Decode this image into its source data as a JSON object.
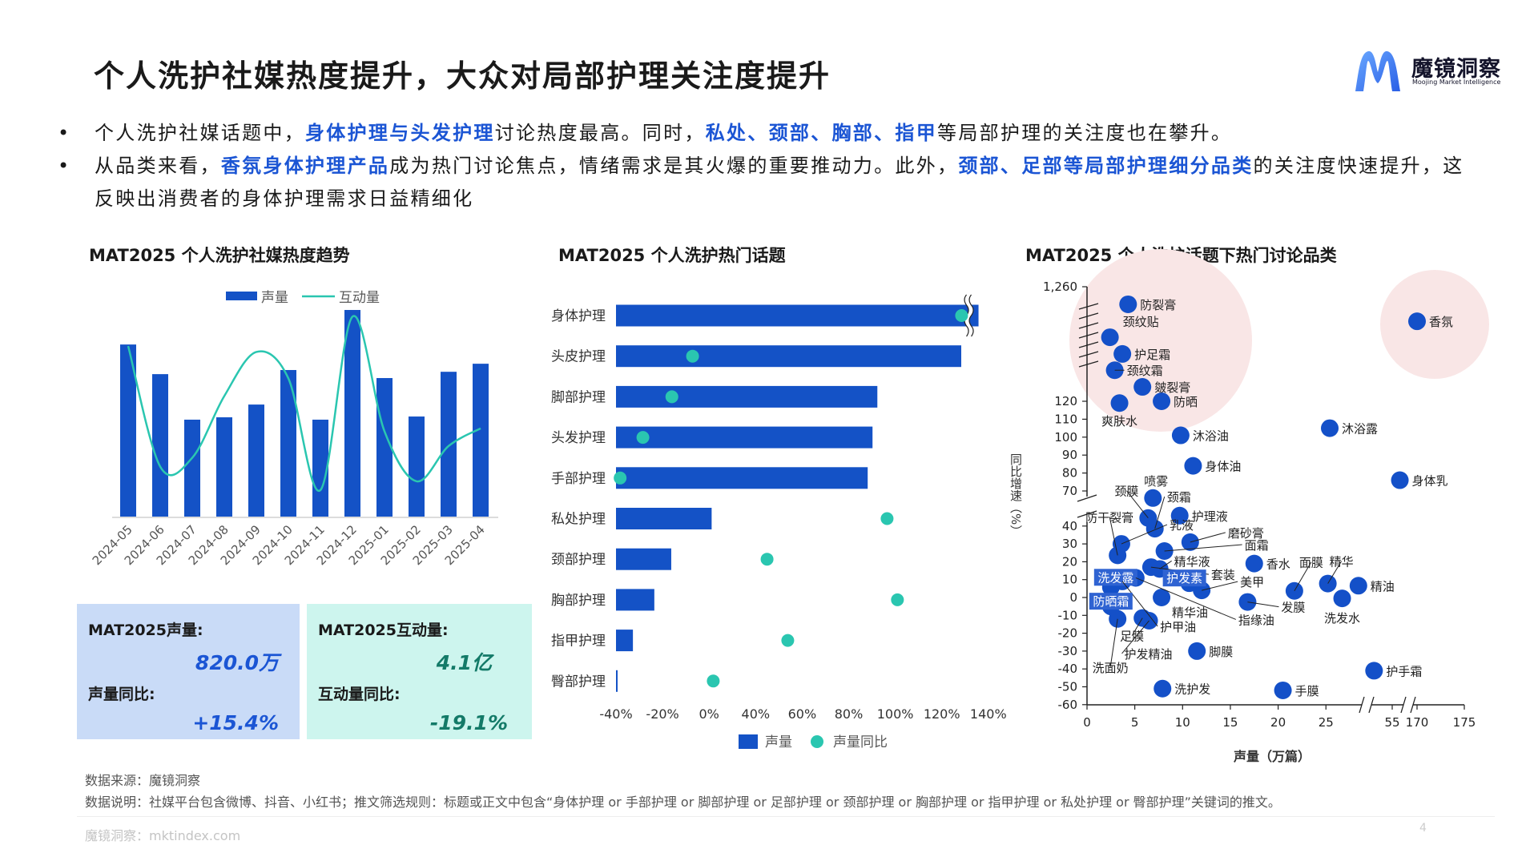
{
  "header": {
    "title": "个人洗护社媒热度提升，大众对局部护理关注度提升",
    "logo": {
      "name_cn": "魔镜洞察",
      "name_en": "Moojing Market Intelligence",
      "icon": "moojing-m-logo"
    }
  },
  "bullets": [
    {
      "segments": [
        {
          "text": "个人洗护社媒话题中，",
          "bold": false
        },
        {
          "text": "身体护理与头发护理",
          "bold": true
        },
        {
          "text": "讨论热度最高。同时，",
          "bold": false
        },
        {
          "text": "私处、颈部、胸部、指甲",
          "bold": true
        },
        {
          "text": "等局部护理的关注度也在攀升。",
          "bold": false
        }
      ]
    },
    {
      "segments": [
        {
          "text": "从品类来看，",
          "bold": false
        },
        {
          "text": "香氛身体护理产品",
          "bold": true
        },
        {
          "text": "成为热门讨论焦点，情绪需求是其火爆的重要推动力。此外，",
          "bold": false
        },
        {
          "text": "颈部、足部等局部护理细分品类",
          "bold": true
        },
        {
          "text": "的关注度快速提升，这反映出消费者的身体护理需求日益精细化",
          "bold": false
        }
      ]
    }
  ],
  "colors": {
    "accent": "#1b55d4",
    "bar": "#1452c6",
    "teal": "#2ac6b0",
    "kpi_blue_bg": "#c9dbf7",
    "kpi_teal_bg": "#cdf5ee",
    "kpi_teal_text": "#137a68",
    "highlight_zone": "#f9e6e6"
  },
  "chart_data": [
    {
      "type": "bar+line",
      "title": "MAT2025 个人洗护社媒热度趋势",
      "categories": [
        "2024-05",
        "2024-06",
        "2024-07",
        "2024-08",
        "2024-09",
        "2024-10",
        "2024-11",
        "2024-12",
        "2025-01",
        "2025-02",
        "2025-03",
        "2025-04"
      ],
      "series": [
        {
          "name": "声量",
          "type": "bar",
          "values": [
            87.7,
            72.6,
            49.4,
            50.6,
            57.1,
            74.7,
            49.4,
            105.3,
            70.6,
            51.0,
            73.8,
            77.9
          ]
        },
        {
          "name": "互动量",
          "type": "line",
          "smooth": true,
          "values": [
            0.58,
            0.17,
            0.2,
            0.41,
            0.56,
            0.47,
            0.09,
            0.68,
            0.29,
            0.12,
            0.24,
            0.3
          ]
        }
      ],
      "legend": "top",
      "grid": false
    },
    {
      "type": "bar+scatter",
      "title": "MAT2025 个人洗护热门话题",
      "categories": [
        "身体护理",
        "头皮护理",
        "脚部护理",
        "头发护理",
        "手部护理",
        "私处护理",
        "颈部护理",
        "胸部护理",
        "指甲护理",
        "臀部护理"
      ],
      "series": [
        {
          "name": "声量",
          "type": "bar",
          "values": [
            105,
            100,
            75.7,
            74.3,
            72.9,
            27.7,
            16,
            11.1,
            4.9,
            0.3
          ],
          "axis_break_on": "身体护理"
        },
        {
          "name": "声量同比",
          "type": "scatter",
          "values": [
            127,
            -3,
            -13,
            -27,
            -38,
            91,
            33,
            96,
            43,
            7
          ]
        }
      ],
      "x_tick_labels": [
        "-40%",
        "-20%",
        "0%",
        "40%",
        "60%",
        "80%",
        "100%",
        "120%",
        "140%"
      ],
      "xlim": [
        -40,
        140
      ],
      "legend": "bottom",
      "grid": false
    },
    {
      "type": "scatter",
      "title": "MAT2025 个人洗护话题下热门讨论品类",
      "xlabel": "声量（万篇）",
      "ylabel": "同比增速（%）",
      "x_ticks": [
        "0",
        "5",
        "10",
        "15",
        "20",
        "25",
        "55",
        "170",
        "175"
      ],
      "y_ticks": [
        "1,260",
        "120",
        "110",
        "100",
        "90",
        "80",
        "70",
        "40",
        "30",
        "20",
        "10",
        "0",
        "-10",
        "-20",
        "-30",
        "-40",
        "-50",
        "-60"
      ],
      "x_breaks": [
        [
          30,
          52
        ],
        [
          58,
          168
        ]
      ],
      "y_breaks": [
        [
          40,
          70
        ],
        [
          120,
          1260
        ]
      ],
      "points": [
        {
          "name": "防裂膏",
          "x": 4.3,
          "y": 1085
        },
        {
          "name": "颈纹贴",
          "x": 2.4,
          "y": 757
        },
        {
          "name": "护足霜",
          "x": 3.7,
          "y": 591
        },
        {
          "name": "颈纹霜",
          "x": 2.9,
          "y": 429
        },
        {
          "name": "皴裂膏",
          "x": 5.8,
          "y": 263
        },
        {
          "name": "爽肤水",
          "x": 3.4,
          "y": 119
        },
        {
          "name": "防晒",
          "x": 7.8,
          "y": 120
        },
        {
          "name": "沐浴油",
          "x": 9.8,
          "y": 101
        },
        {
          "name": "沐浴露",
          "x": 25.4,
          "y": 105
        },
        {
          "name": "身体油",
          "x": 11.1,
          "y": 84
        },
        {
          "name": "身体乳",
          "x": 55.8,
          "y": 76
        },
        {
          "name": "香氛",
          "x": 170,
          "y": 916
        },
        {
          "name": "喷雾",
          "x": 6.9,
          "y": 64
        },
        {
          "name": "颈膜",
          "x": 6.4,
          "y": 47
        },
        {
          "name": "颈霜",
          "x": 7.1,
          "y": 38.5
        },
        {
          "name": "护理液",
          "x": 9.7,
          "y": 49
        },
        {
          "name": "乳液",
          "x": 3.6,
          "y": 30
        },
        {
          "name": "防干裂膏",
          "x": 3.2,
          "y": 23.6
        },
        {
          "name": "磨砂膏",
          "x": 10.8,
          "y": 31
        },
        {
          "name": "面霜",
          "x": 8.1,
          "y": 26
        },
        {
          "name": "精华液",
          "x": 7.6,
          "y": 16
        },
        {
          "name": "套装",
          "x": 6.7,
          "y": 17
        },
        {
          "name": "香水",
          "x": 17.5,
          "y": 19
        },
        {
          "name": "洗发露",
          "x": 2.5,
          "y": 5.7,
          "boxed": true
        },
        {
          "name": "护甲油",
          "x": 3.7,
          "y": 9
        },
        {
          "name": "指缘油",
          "x": 5.1,
          "y": 11
        },
        {
          "name": "防晒霜",
          "x": 2.5,
          "y": -5,
          "boxed": true
        },
        {
          "name": "洗面奶",
          "x": 3.2,
          "y": -12
        },
        {
          "name": "护发素",
          "x": 10.7,
          "y": 8,
          "boxed": true
        },
        {
          "name": "美甲",
          "x": 12.0,
          "y": 4
        },
        {
          "name": "精华油",
          "x": 7.8,
          "y": 0
        },
        {
          "name": "发膜",
          "x": 16.8,
          "y": -2.5
        },
        {
          "name": "足膜",
          "x": 5.8,
          "y": -11.5
        },
        {
          "name": "护发精油",
          "x": 6.5,
          "y": -13
        },
        {
          "name": "脚膜",
          "x": 11.5,
          "y": -30
        },
        {
          "name": "洗护发",
          "x": 7.9,
          "y": -51
        },
        {
          "name": "手膜",
          "x": 20.5,
          "y": -52
        },
        {
          "name": "护手霜",
          "x": 53.1,
          "y": -41
        },
        {
          "name": "面膜",
          "x": 21.7,
          "y": 3.7
        },
        {
          "name": "精华",
          "x": 25.2,
          "y": 7.8
        },
        {
          "name": "精油",
          "x": 28.4,
          "y": 6.6
        },
        {
          "name": "洗发水",
          "x": 26.7,
          "y": -0.5
        }
      ]
    }
  ],
  "kpis": [
    {
      "label1": "MAT2025声量:",
      "value1": "820.0万",
      "label2": "声量同比:",
      "value2": "+15.4%"
    },
    {
      "label1": "MAT2025互动量:",
      "value1": "4.1亿",
      "label2": "互动量同比:",
      "value2": "-19.1%"
    }
  ],
  "footer": {
    "source": "数据来源：魔镜洞察",
    "note": "数据说明：社媒平台包含微博、抖音、小红书；推文筛选规则：标题或正文中包含“身体护理 or 手部护理 or 脚部护理 or 足部护理 or 颈部护理 or 胸部护理 or 指甲护理 or 私处护理 or 臀部护理”关键词的推文。",
    "site": "魔镜洞察：mktindex.com",
    "page": "4"
  }
}
